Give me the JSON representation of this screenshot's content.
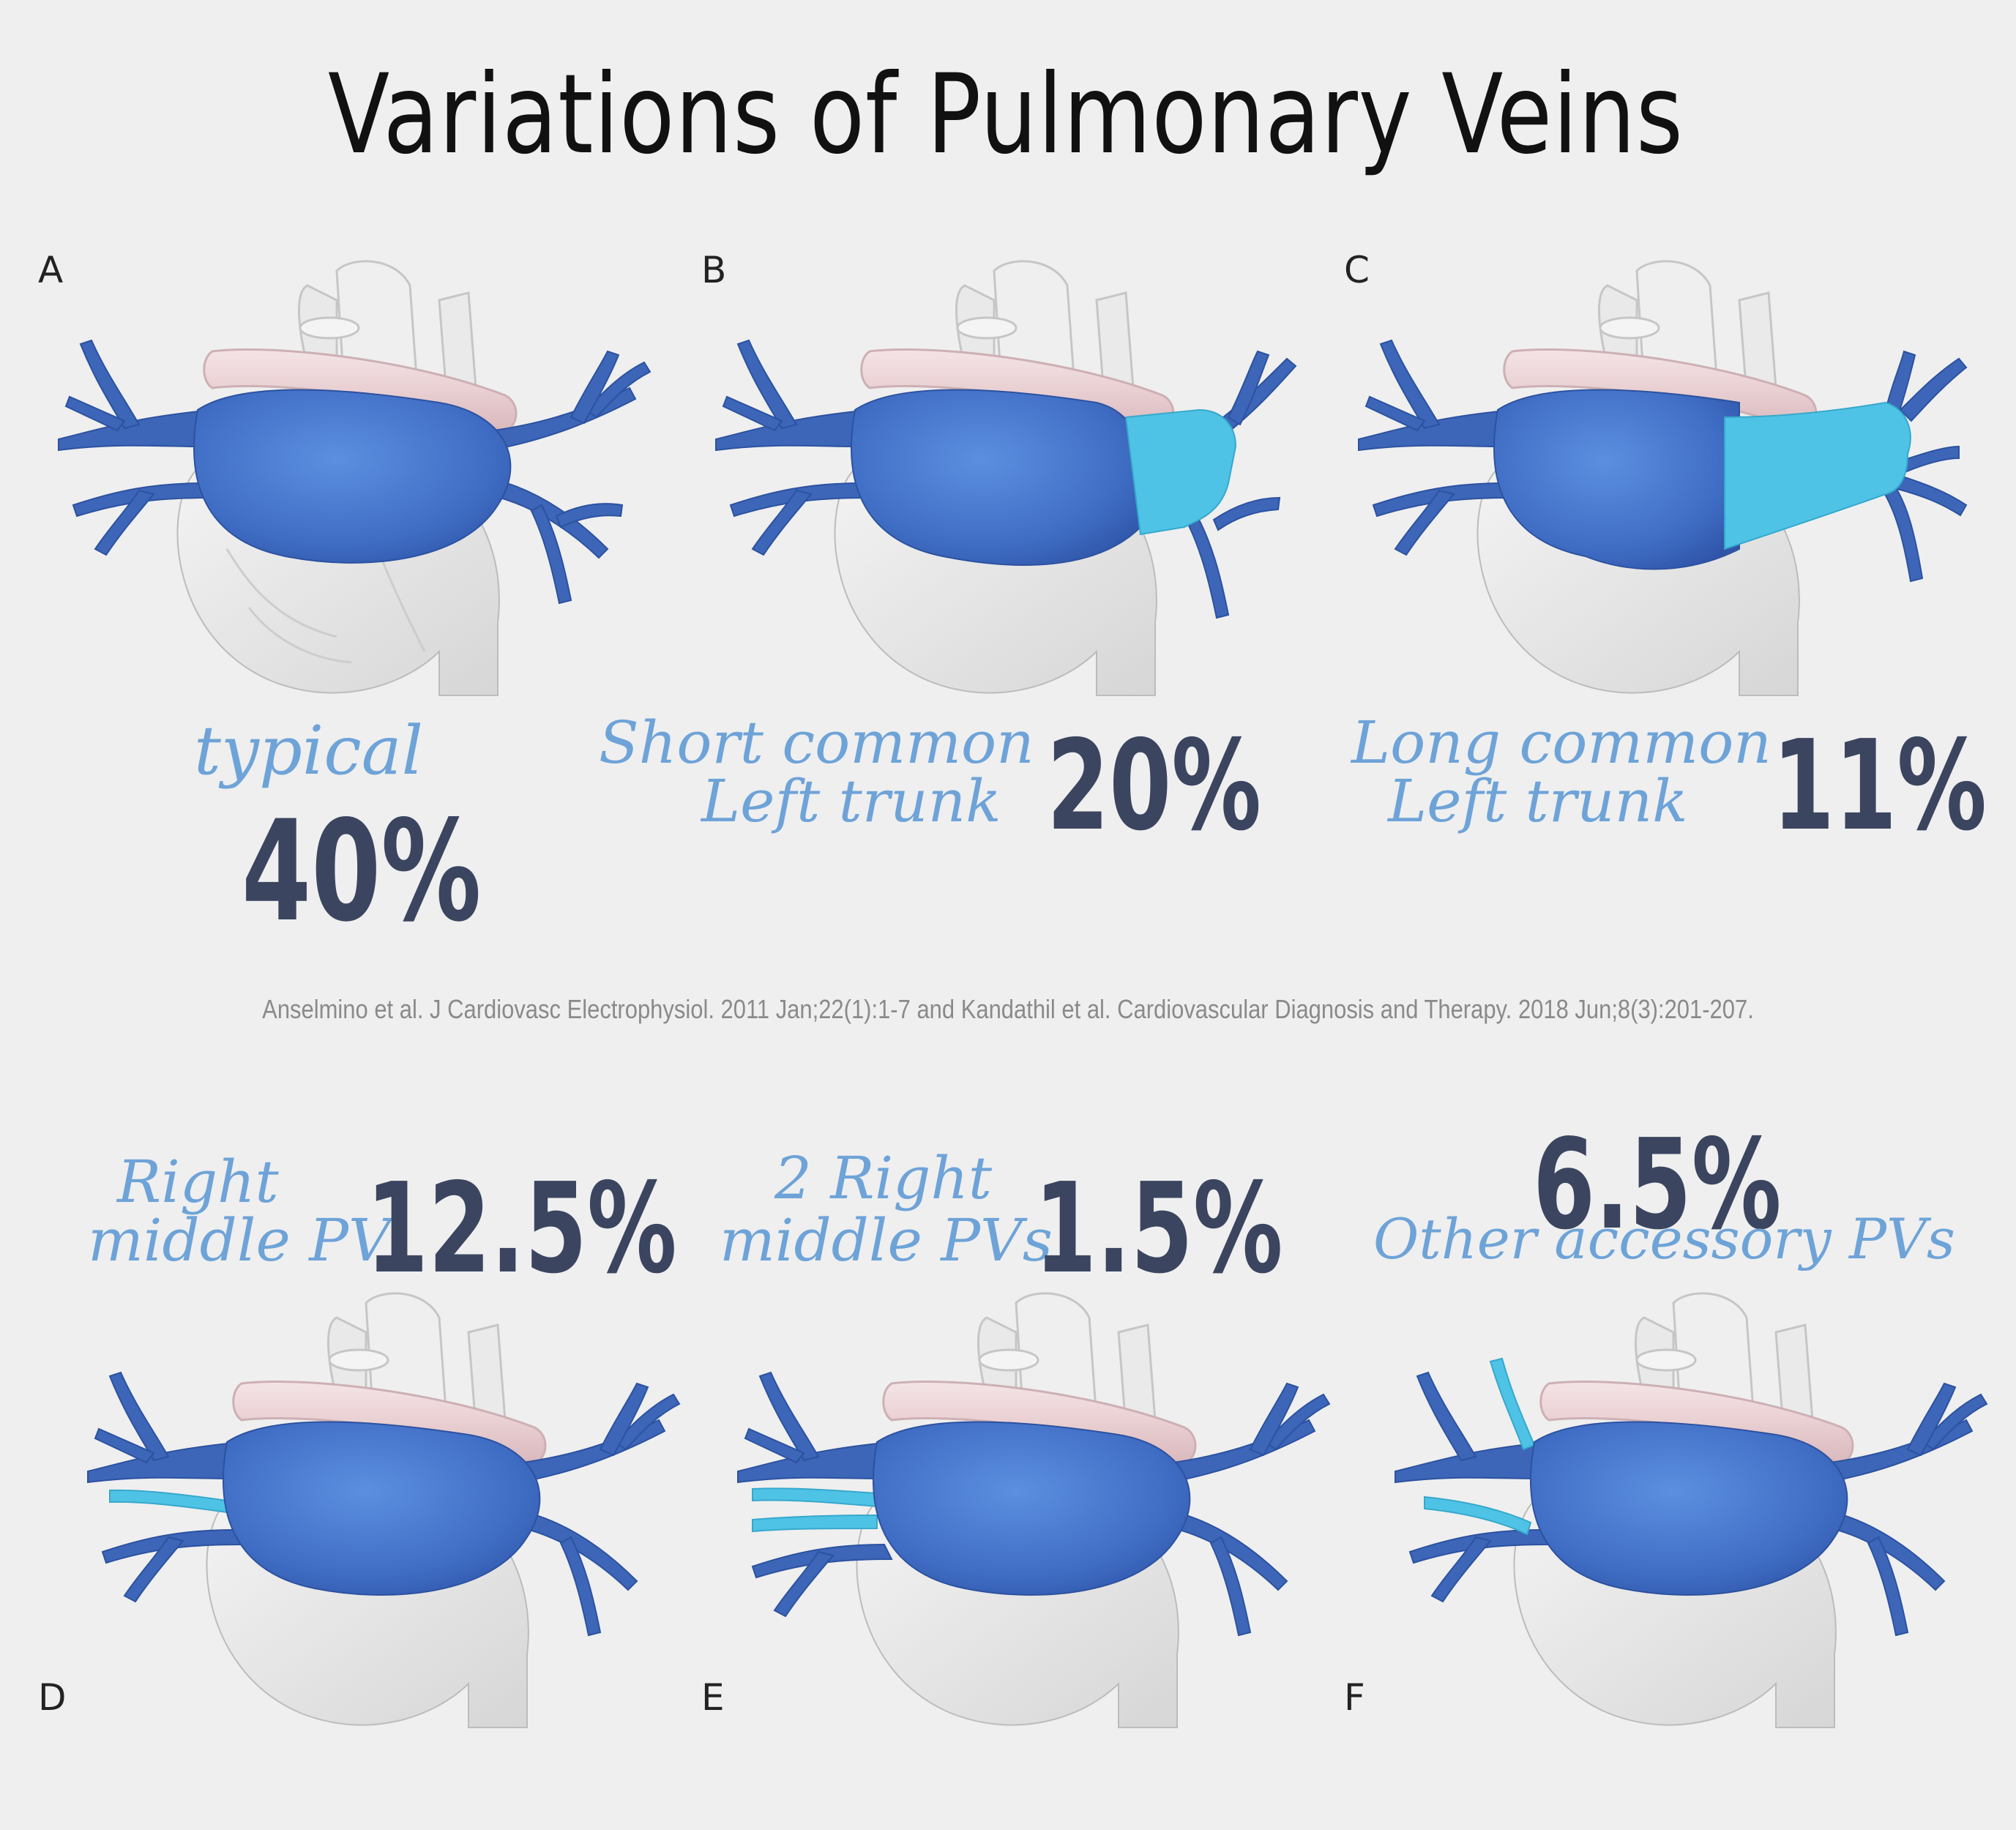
{
  "title": "Variations of Pulmonary Veins",
  "citation": "Anselmino et al. J Cardiovasc Electrophysiol. 2011 Jan;22(1):1-7 and Kandathil et al. Cardiovascular Diagnosis and Therapy. 2018 Jun;8(3):201-207.",
  "colors": {
    "vein_dark": "#3d66b8",
    "vein_main": "#4877cc",
    "vein_accent": "#4fc3e6",
    "band": "#ecd6d8",
    "heart": "#e4e4e4",
    "script_text": "#6ea3d8",
    "percent_text": "#3b4560"
  },
  "panels": [
    {
      "letter": "A",
      "label_line1": "typical",
      "label_line2": "",
      "percent": "40%",
      "variant": "typical"
    },
    {
      "letter": "B",
      "label_line1": "Short common",
      "label_line2": "Left trunk",
      "percent": "20%",
      "variant": "short-left-trunk"
    },
    {
      "letter": "C",
      "label_line1": "Long common",
      "label_line2": "Left trunk",
      "percent": "11%",
      "variant": "long-left-trunk"
    },
    {
      "letter": "D",
      "label_line1": "Right",
      "label_line2": "middle PV",
      "percent": "12.5%",
      "variant": "right-middle-pv"
    },
    {
      "letter": "E",
      "label_line1": "2 Right",
      "label_line2": "middle PVs",
      "percent": "1.5%",
      "variant": "two-right-middle-pvs"
    },
    {
      "letter": "F",
      "label_line1": "Other accessory PVs",
      "label_line2": "",
      "percent": "6.5%",
      "variant": "other-accessory-pvs"
    }
  ]
}
